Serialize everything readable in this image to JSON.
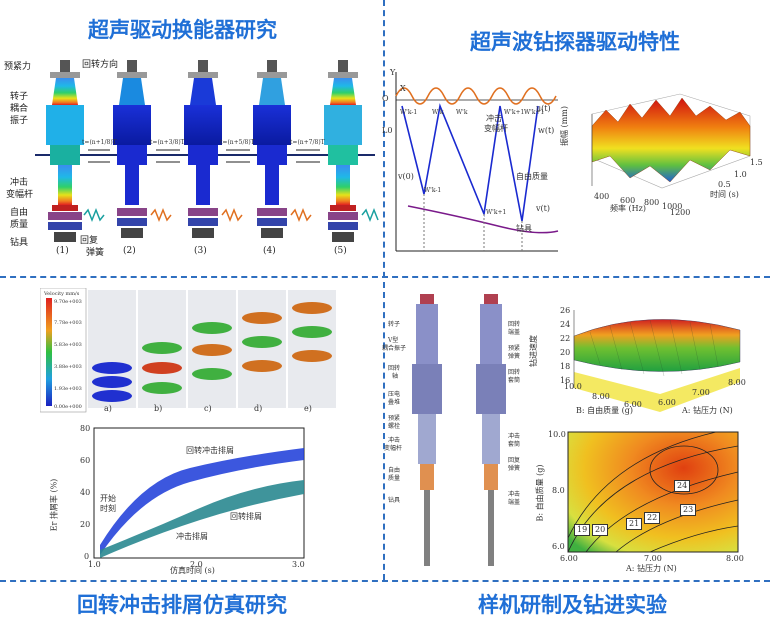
{
  "titles": {
    "top_left": "超声驱动换能器研究",
    "top_right": "超声波钻探器驱动特性",
    "bottom_left": "回转冲击排屑仿真研究",
    "bottom_right": "样机研制及钻进实验"
  },
  "transducer": {
    "side_labels": [
      "预紧力",
      "转子",
      "耦合",
      "振子",
      "冲击",
      "变幅杆",
      "自由",
      "质量",
      "钻具"
    ],
    "top_label": "回转方向",
    "return_label": "回复",
    "spring_label": "弹簧",
    "stage_numbers": [
      "(1)",
      "(2)",
      "(3)",
      "(4)",
      "(5)"
    ],
    "time_labels": [
      "t=(n+1/8)T",
      "t=(n+3/8)T",
      "t=(n+5/8)T",
      "t=(n+7/8)T"
    ]
  },
  "wave_plot": {
    "labels": [
      "Y",
      "O",
      "X",
      "u(t)",
      "w(t)",
      "v(t)",
      "v(0)",
      "L0",
      "冲击",
      "变幅杆",
      "自由质量",
      "钻具"
    ],
    "w_labels": [
      "W'k-1",
      "W'k",
      "W'k",
      "W'k+1",
      "W'k+1",
      "W'k-1",
      "W'k+1"
    ]
  },
  "surface_plot": {
    "z_label": "振幅 (mm)",
    "x_label": "频率 (Hz)",
    "y_label": "时间 (s)",
    "x_ticks": [
      "400",
      "600",
      "800",
      "1000",
      "1200"
    ],
    "y_ticks": [
      "1.5",
      "1.0",
      "0.5"
    ]
  },
  "simulation": {
    "legend_title": "Velocity mm/s",
    "legend_values": [
      "9.70e+003",
      "7.78e+003",
      "5.83e+003",
      "3.88e+003",
      "1.93e+003",
      "0.00e+000"
    ],
    "frame_labels": [
      "a)",
      "b)",
      "c)",
      "d)",
      "e)"
    ]
  },
  "removal_chart": {
    "y_label": "Er 排屑率 (%)",
    "x_label": "仿真时间 (s)",
    "y_ticks": [
      "80",
      "60",
      "40",
      "20",
      "0"
    ],
    "x_ticks": [
      "1.0",
      "2.0",
      "3.0"
    ],
    "annotations": [
      "回转冲击排屑",
      "回转排屑",
      "冲击排屑",
      "开始",
      "时刻"
    ]
  },
  "prototype": {
    "left_labels": [
      "转子",
      "V型",
      "耦合振子",
      "回转",
      "轴",
      "压电",
      "叠堆",
      "预紧",
      "螺栓",
      "冲击",
      "变幅杆",
      "自由",
      "质量",
      "钻具"
    ],
    "right_labels": [
      "回转",
      "端盖",
      "预紧",
      "弹簧",
      "回转",
      "套筒",
      "冲击",
      "套筒",
      "回复",
      "弹簧",
      "冲击",
      "端盖"
    ]
  },
  "response_surface": {
    "z_label": "钻进速度",
    "x_label": "A: 钻压力 (N)",
    "y_label": "B: 自由质量 (g)",
    "z_ticks": [
      "26",
      "24",
      "22",
      "20",
      "18",
      "16"
    ],
    "x_ticks": [
      "6.00",
      "7.00",
      "8.00"
    ],
    "y_ticks": [
      "10.0",
      "8.00",
      "6.00"
    ]
  },
  "contour": {
    "x_label": "A: 钻压力 (N)",
    "y_label": "B: 自由质量 (g)",
    "x_ticks": [
      "6.00",
      "7.00",
      "8.00"
    ],
    "y_ticks": [
      "10.0",
      "8.0",
      "6.0"
    ],
    "contour_labels": [
      "24",
      "23",
      "22",
      "21",
      "20",
      "19"
    ]
  }
}
